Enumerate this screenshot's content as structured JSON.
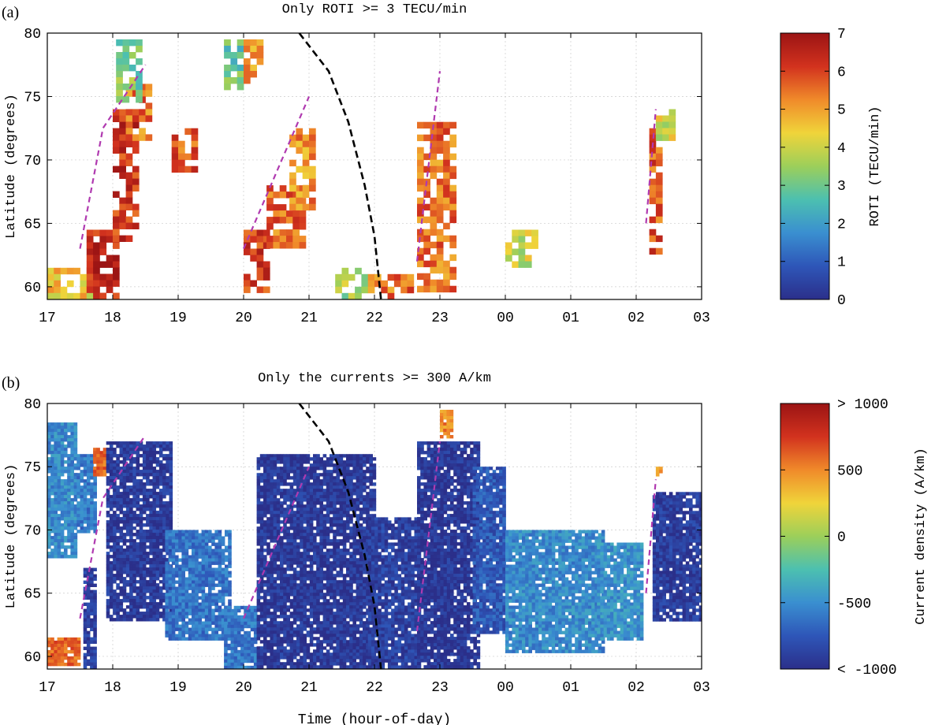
{
  "chart_data": [
    {
      "panel_label": "(a)",
      "type": "heatmap",
      "title": "Only ROTI >= 3 TECU/min",
      "xlabel": "",
      "ylabel": "Latitude (degrees)",
      "xticks": [
        "17",
        "18",
        "19",
        "20",
        "21",
        "22",
        "23",
        "00",
        "01",
        "02",
        "03"
      ],
      "xlim_hours_since_17": [
        0,
        10
      ],
      "yticks": [
        "60",
        "65",
        "70",
        "75",
        "80"
      ],
      "ylim": [
        59,
        80
      ],
      "colorbar": {
        "label": "ROTI (TECU/min)",
        "ticks": [
          "0",
          "1",
          "2",
          "3",
          "4",
          "5",
          "6",
          "7"
        ],
        "range": [
          0,
          7
        ],
        "colormap": [
          "#2b2f8a",
          "#2e56b8",
          "#3a8fd0",
          "#4cc0b0",
          "#9ccf5a",
          "#f0d43a",
          "#f08a2a",
          "#d2321e",
          "#9b1414"
        ]
      },
      "grid": true,
      "blobs": [
        {
          "t": [
            0.0,
            0.6
          ],
          "lat": [
            59.5,
            61.5
          ],
          "value": 4.5
        },
        {
          "t": [
            0.6,
            1.1
          ],
          "lat": [
            59.5,
            64.5
          ],
          "value": 6.5
        },
        {
          "t": [
            1.0,
            1.4
          ],
          "lat": [
            64,
            74
          ],
          "value": 6.2
        },
        {
          "t": [
            1.2,
            1.55
          ],
          "lat": [
            72,
            76
          ],
          "value": 5.5
        },
        {
          "t": [
            1.05,
            1.45
          ],
          "lat": [
            75,
            79.5
          ],
          "value": 3.2
        },
        {
          "t": [
            1.9,
            2.3
          ],
          "lat": [
            69.5,
            72.5
          ],
          "value": 5.8
        },
        {
          "t": [
            2.7,
            2.95
          ],
          "lat": [
            76,
            79.5
          ],
          "value": 3.0
        },
        {
          "t": [
            3.0,
            3.25
          ],
          "lat": [
            76.5,
            79.5
          ],
          "value": 5.0
        },
        {
          "t": [
            3.0,
            3.35
          ],
          "lat": [
            60,
            64.5
          ],
          "value": 6.0
        },
        {
          "t": [
            3.35,
            3.9
          ],
          "lat": [
            63.5,
            68
          ],
          "value": 5.6
        },
        {
          "t": [
            3.7,
            4.1
          ],
          "lat": [
            66.5,
            72.5
          ],
          "value": 5.2
        },
        {
          "t": [
            4.4,
            4.9
          ],
          "lat": [
            59.5,
            61.5
          ],
          "value": 3.6
        },
        {
          "t": [
            4.9,
            5.6
          ],
          "lat": [
            59.5,
            61
          ],
          "value": 5.5
        },
        {
          "t": [
            5.65,
            6.2
          ],
          "lat": [
            60,
            73
          ],
          "value": 5.5
        },
        {
          "t": [
            7.0,
            7.45
          ],
          "lat": [
            62,
            64.5
          ],
          "value": 4.0
        },
        {
          "t": [
            9.2,
            9.35
          ],
          "lat": [
            63,
            72.5
          ],
          "value": 5.8
        },
        {
          "t": [
            9.3,
            9.55
          ],
          "lat": [
            72,
            74.5
          ],
          "value": 4.0
        }
      ],
      "dashed_lines": [
        {
          "color": "#b03ab0",
          "points": [
            [
              0.5,
              63
            ],
            [
              0.85,
              72.5
            ],
            [
              1.5,
              77.5
            ]
          ]
        },
        {
          "color": "#b03ab0",
          "points": [
            [
              3.0,
              63
            ],
            [
              4.0,
              75
            ]
          ]
        },
        {
          "color": "#b03ab0",
          "points": [
            [
              5.65,
              62
            ],
            [
              6.0,
              77
            ]
          ]
        },
        {
          "color": "#b03ab0",
          "points": [
            [
              9.15,
              65
            ],
            [
              9.3,
              74
            ]
          ]
        },
        {
          "color": "#000000",
          "points": [
            [
              3.85,
              80
            ],
            [
              4.3,
              77
            ],
            [
              4.6,
              73
            ],
            [
              4.85,
              68
            ],
            [
              5.0,
              64
            ],
            [
              5.1,
              59
            ]
          ]
        }
      ]
    },
    {
      "panel_label": "(b)",
      "type": "heatmap",
      "title": "Only the currents >= 300 A/km",
      "xlabel": "Time (hour-of-day)",
      "ylabel": "Latitude (degrees)",
      "xticks": [
        "17",
        "18",
        "19",
        "20",
        "21",
        "22",
        "23",
        "00",
        "01",
        "02",
        "03"
      ],
      "xlim_hours_since_17": [
        0,
        10
      ],
      "yticks": [
        "60",
        "65",
        "70",
        "75",
        "80"
      ],
      "ylim": [
        59,
        80
      ],
      "colorbar": {
        "label": "Current density (A/km)",
        "ticks": [
          "< -1000",
          "-500",
          "0",
          "500",
          "> 1000"
        ],
        "range": [
          -1000,
          1000
        ],
        "colormap": [
          "#2b2f8a",
          "#2e56b8",
          "#3a8fd0",
          "#4cc0b0",
          "#9ccf5a",
          "#f0d43a",
          "#f08a2a",
          "#d2321e",
          "#9b1414"
        ]
      },
      "grid": true,
      "blobs": [
        {
          "t": [
            0.0,
            0.5
          ],
          "lat": [
            59.5,
            61.5
          ],
          "value": 600
        },
        {
          "t": [
            0.0,
            0.45
          ],
          "lat": [
            68,
            78.5
          ],
          "value": -520
        },
        {
          "t": [
            0.45,
            0.75
          ],
          "lat": [
            70,
            76
          ],
          "value": -600
        },
        {
          "t": [
            0.55,
            0.75
          ],
          "lat": [
            59,
            67
          ],
          "value": -900
        },
        {
          "t": [
            0.7,
            0.9
          ],
          "lat": [
            74.5,
            76.5
          ],
          "value": 600
        },
        {
          "t": [
            0.9,
            1.9
          ],
          "lat": [
            63,
            77
          ],
          "value": -920
        },
        {
          "t": [
            1.8,
            2.8
          ],
          "lat": [
            61.5,
            70
          ],
          "value": -620
        },
        {
          "t": [
            2.7,
            3.2
          ],
          "lat": [
            59,
            64
          ],
          "value": -600
        },
        {
          "t": [
            3.2,
            5.0
          ],
          "lat": [
            59,
            76
          ],
          "value": -930
        },
        {
          "t": [
            4.9,
            5.7
          ],
          "lat": [
            59,
            71
          ],
          "value": -880
        },
        {
          "t": [
            5.65,
            6.6
          ],
          "lat": [
            59,
            77
          ],
          "value": -940
        },
        {
          "t": [
            6.5,
            7.0
          ],
          "lat": [
            62,
            75
          ],
          "value": -750
        },
        {
          "t": [
            7.0,
            8.5
          ],
          "lat": [
            60.5,
            70
          ],
          "value": -520
        },
        {
          "t": [
            8.4,
            9.1
          ],
          "lat": [
            61.5,
            69
          ],
          "value": -480
        },
        {
          "t": [
            6.0,
            6.2
          ],
          "lat": [
            77.5,
            79.5
          ],
          "value": 500
        },
        {
          "t": [
            9.25,
            10.0
          ],
          "lat": [
            63,
            73
          ],
          "value": -900
        },
        {
          "t": [
            9.3,
            9.4
          ],
          "lat": [
            74.5,
            75
          ],
          "value": 450
        }
      ],
      "dashed_lines": [
        {
          "color": "#b03ab0",
          "points": [
            [
              0.5,
              63
            ],
            [
              0.85,
              72.5
            ],
            [
              1.5,
              77.5
            ]
          ]
        },
        {
          "color": "#b03ab0",
          "points": [
            [
              3.0,
              63
            ],
            [
              4.0,
              75
            ]
          ]
        },
        {
          "color": "#b03ab0",
          "points": [
            [
              5.65,
              62
            ],
            [
              6.0,
              77
            ]
          ]
        },
        {
          "color": "#b03ab0",
          "points": [
            [
              9.15,
              65
            ],
            [
              9.3,
              74
            ]
          ]
        },
        {
          "color": "#000000",
          "points": [
            [
              3.85,
              80
            ],
            [
              4.3,
              77
            ],
            [
              4.6,
              73
            ],
            [
              4.85,
              68
            ],
            [
              5.0,
              64
            ],
            [
              5.1,
              59
            ]
          ]
        }
      ]
    }
  ]
}
